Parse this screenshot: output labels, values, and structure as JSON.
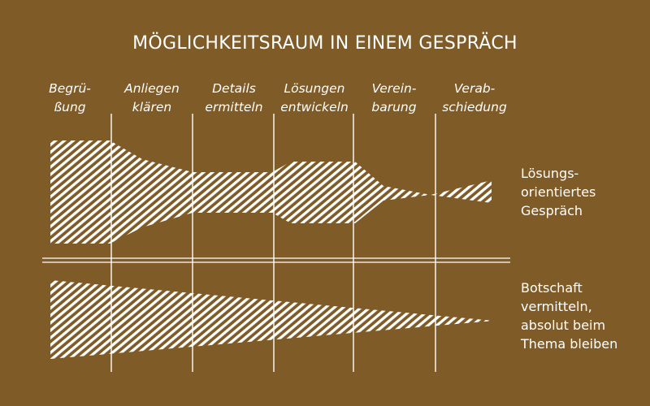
{
  "title": "MÖGLICHKEITSRAUM IN EINEM GESPRÄCH",
  "phases": [
    {
      "line1": "Begrü-",
      "line2": "ßung"
    },
    {
      "line1": "Anliegen",
      "line2": "klären"
    },
    {
      "line1": "Details",
      "line2": "ermitteln"
    },
    {
      "line1": "Lösungen",
      "line2": "entwickeln"
    },
    {
      "line1": "Verein-",
      "line2": "barung"
    },
    {
      "line1": "Verab-",
      "line2": "schiedung"
    }
  ],
  "upper_label": {
    "line1": "Lösungs-",
    "line2": "orientiertes",
    "line3": "Gespräch"
  },
  "lower_label": {
    "line1": "Botschaft",
    "line2": "vermitteln,",
    "line3": "absolut beim",
    "line4": "Thema bleiben"
  },
  "colors": {
    "background": "#7f5b28",
    "foreground": "#ffffff"
  }
}
